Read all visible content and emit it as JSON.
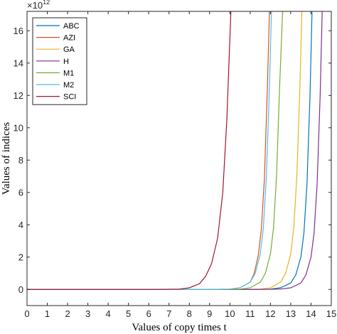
{
  "chart_data": {
    "type": "line",
    "xlabel": "Values of copy times t",
    "ylabel": "Values of indices",
    "y_exponent_base": "×10",
    "y_exponent_power": "12",
    "xlim": [
      0,
      15
    ],
    "ylim": [
      -1,
      17.2
    ],
    "xticks": [
      0,
      1,
      2,
      3,
      4,
      5,
      6,
      7,
      8,
      9,
      10,
      11,
      12,
      13,
      14,
      15
    ],
    "yticks": [
      0,
      2,
      4,
      6,
      8,
      10,
      12,
      14,
      16
    ],
    "grid": false,
    "legend_position": "top-left",
    "series": [
      {
        "name": "ABC",
        "color": "#0072BD",
        "x": [
          11.0,
          12.0,
          12.5,
          13.0,
          13.25,
          13.5,
          13.65,
          13.8,
          13.95,
          14.05
        ],
        "y": [
          0.0,
          0.02,
          0.1,
          0.4,
          0.9,
          2.0,
          3.5,
          6.5,
          12.0,
          17.2
        ]
      },
      {
        "name": "AZI",
        "color": "#D95319",
        "x": [
          9.0,
          10.0,
          10.5,
          11.0,
          11.2,
          11.4,
          11.55,
          11.7,
          11.85,
          11.95
        ],
        "y": [
          0.0,
          0.02,
          0.1,
          0.45,
          1.0,
          2.1,
          3.7,
          6.8,
          12.5,
          17.2
        ]
      },
      {
        "name": "GA",
        "color": "#EDB120",
        "x": [
          10.5,
          11.5,
          12.0,
          12.5,
          12.75,
          13.0,
          13.15,
          13.3,
          13.45,
          13.55
        ],
        "y": [
          0.0,
          0.02,
          0.1,
          0.45,
          1.0,
          2.2,
          3.8,
          7.0,
          12.5,
          17.2
        ]
      },
      {
        "name": "H",
        "color": "#7E2F8E",
        "x": [
          11.5,
          12.5,
          13.0,
          13.5,
          13.75,
          14.0,
          14.15,
          14.3,
          14.45,
          14.55
        ],
        "y": [
          0.0,
          0.02,
          0.1,
          0.4,
          0.9,
          2.0,
          3.5,
          6.5,
          12.0,
          17.2
        ]
      },
      {
        "name": "M1",
        "color": "#77AC30",
        "x": [
          9.5,
          10.5,
          11.0,
          11.5,
          11.75,
          12.0,
          12.15,
          12.3,
          12.45,
          12.6
        ],
        "y": [
          0.0,
          0.02,
          0.1,
          0.45,
          1.0,
          2.2,
          3.8,
          7.0,
          12.5,
          17.2
        ]
      },
      {
        "name": "M2",
        "color": "#4DBEEE",
        "x": [
          9.0,
          10.0,
          10.5,
          11.0,
          11.25,
          11.5,
          11.65,
          11.8,
          11.95,
          12.05
        ],
        "y": [
          0.0,
          0.02,
          0.1,
          0.45,
          1.0,
          2.2,
          3.8,
          7.0,
          12.5,
          17.2
        ]
      },
      {
        "name": "SCI",
        "color": "#A2142F",
        "x": [
          6.5,
          7.5,
          8.0,
          8.5,
          8.8,
          9.1,
          9.4,
          9.65,
          9.85,
          10.05
        ],
        "y": [
          0.0,
          0.02,
          0.1,
          0.35,
          0.8,
          1.6,
          3.2,
          6.0,
          10.5,
          17.2
        ]
      }
    ]
  }
}
